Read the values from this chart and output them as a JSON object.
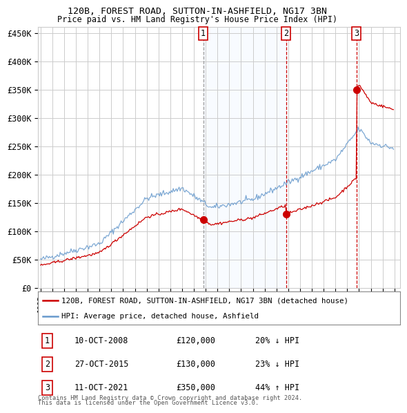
{
  "title1": "120B, FOREST ROAD, SUTTON-IN-ASHFIELD, NG17 3BN",
  "title2": "Price paid vs. HM Land Registry's House Price Index (HPI)",
  "ylim": [
    0,
    460000
  ],
  "yticks": [
    0,
    50000,
    100000,
    150000,
    200000,
    250000,
    300000,
    350000,
    400000,
    450000
  ],
  "ytick_labels": [
    "£0",
    "£50K",
    "£100K",
    "£150K",
    "£200K",
    "£250K",
    "£300K",
    "£350K",
    "£400K",
    "£450K"
  ],
  "legend_line1": "120B, FOREST ROAD, SUTTON-IN-ASHFIELD, NG17 3BN (detached house)",
  "legend_line2": "HPI: Average price, detached house, Ashfield",
  "transactions": [
    {
      "num": 1,
      "date": "10-OCT-2008",
      "price": "£120,000",
      "hpi_str": "20% ↓ HPI"
    },
    {
      "num": 2,
      "date": "27-OCT-2015",
      "price": "£130,000",
      "hpi_str": "23% ↓ HPI"
    },
    {
      "num": 3,
      "date": "11-OCT-2021",
      "price": "£350,000",
      "hpi_str": "44% ↑ HPI"
    }
  ],
  "transaction_years": [
    2008.79,
    2015.83,
    2021.79
  ],
  "transaction_prices": [
    120000,
    130000,
    350000
  ],
  "footer1": "Contains HM Land Registry data © Crown copyright and database right 2024.",
  "footer2": "This data is licensed under the Open Government Licence v3.0.",
  "property_color": "#cc0000",
  "hpi_color": "#6699cc",
  "vline1_color": "#999999",
  "vline23_color": "#cc0000",
  "shade_color": "#ddeeff",
  "grid_color": "#cccccc",
  "background_color": "#ffffff"
}
